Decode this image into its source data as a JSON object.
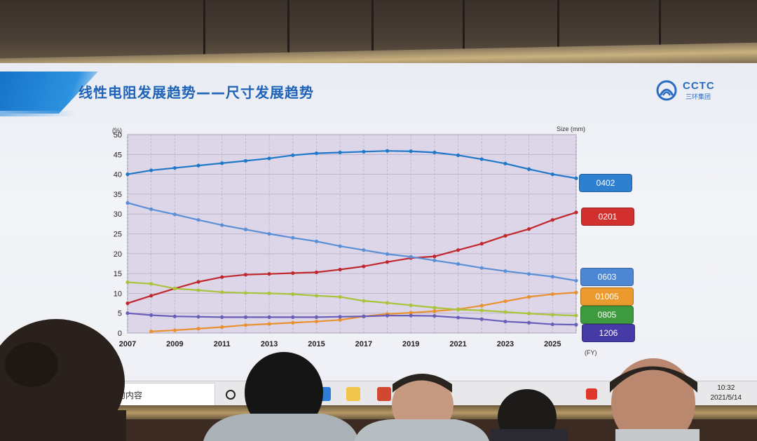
{
  "slide": {
    "title": "线性电阻发展趋势——尺寸发展趋势",
    "logo_text": "CCTC",
    "logo_subtext": "三环集团"
  },
  "chart_data": {
    "type": "line",
    "y_unit_label": "(%)",
    "size_label": "Size (mm)",
    "x_unit_label": "(FY)",
    "xlim": [
      2007,
      2026
    ],
    "ylim": [
      0,
      50
    ],
    "x_ticks": [
      "2007",
      "2009",
      "2011",
      "2013",
      "2015",
      "2017",
      "2019",
      "2021",
      "2023",
      "2025"
    ],
    "y_ticks": [
      "0",
      "5",
      "10",
      "15",
      "20",
      "25",
      "30",
      "35",
      "40",
      "45",
      "50"
    ],
    "grid": true,
    "x": [
      2007,
      2008,
      2009,
      2010,
      2011,
      2012,
      2013,
      2014,
      2015,
      2016,
      2017,
      2018,
      2019,
      2020,
      2021,
      2022,
      2023,
      2024,
      2025,
      2026
    ],
    "series": [
      {
        "name": "0402",
        "color": "#1f78c8",
        "values": [
          40.0,
          41.0,
          41.6,
          42.2,
          42.8,
          43.4,
          44.0,
          44.8,
          45.3,
          45.5,
          45.7,
          45.9,
          45.8,
          45.5,
          44.8,
          43.8,
          42.7,
          41.3,
          40.0,
          39.0
        ]
      },
      {
        "name": "0201",
        "color": "#c0282d",
        "values": [
          7.5,
          9.4,
          11.2,
          12.9,
          14.1,
          14.7,
          14.9,
          15.1,
          15.3,
          16.0,
          16.8,
          17.9,
          18.9,
          19.3,
          20.9,
          22.5,
          24.5,
          26.2,
          28.5,
          30.4
        ]
      },
      {
        "name": "0603",
        "color": "#5b8fd6",
        "values": [
          32.8,
          31.2,
          29.9,
          28.5,
          27.2,
          26.1,
          25.0,
          24.0,
          23.1,
          21.9,
          20.9,
          19.9,
          19.2,
          18.3,
          17.4,
          16.4,
          15.6,
          14.9,
          14.2,
          13.2
        ]
      },
      {
        "name": "01005",
        "color": "#e8912e",
        "values": [
          null,
          0.4,
          0.7,
          1.1,
          1.5,
          2.0,
          2.3,
          2.6,
          2.9,
          3.3,
          4.2,
          4.8,
          5.1,
          5.5,
          6.0,
          6.9,
          8.0,
          9.1,
          9.8,
          10.2
        ]
      },
      {
        "name": "0805",
        "color": "#a9c43b",
        "values": [
          12.8,
          12.4,
          11.2,
          10.8,
          10.3,
          10.1,
          10.0,
          9.8,
          9.4,
          9.1,
          8.1,
          7.6,
          7.0,
          6.4,
          5.9,
          5.7,
          5.3,
          4.9,
          4.6,
          4.4
        ]
      },
      {
        "name": "1206",
        "color": "#6a5fb8",
        "values": [
          5.0,
          4.5,
          4.2,
          4.1,
          4.0,
          4.0,
          4.0,
          4.0,
          4.0,
          4.1,
          4.2,
          4.4,
          4.4,
          4.3,
          3.9,
          3.5,
          2.9,
          2.6,
          2.2,
          2.1
        ]
      }
    ]
  },
  "taskbar": {
    "search_text": "的内容",
    "time": "10:32",
    "date": "2021/5/14"
  },
  "colors": {
    "title_blue": "#1f63b8",
    "plot_background": "#ddd6e8",
    "tag_0402": "#2f7fd0",
    "tag_0201": "#d22f2f",
    "tag_0603": "#4d86d2",
    "tag_01005": "#eb9a2e",
    "tag_0805": "#3e9a3e",
    "tag_1206": "#453aa6"
  }
}
